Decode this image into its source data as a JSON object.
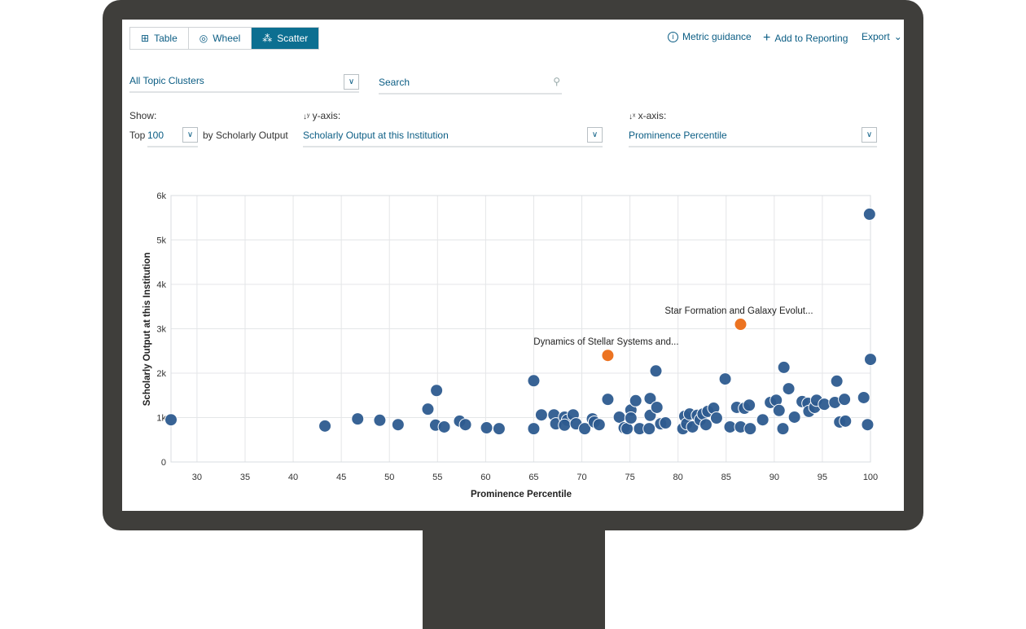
{
  "toolbar": {
    "tabs": [
      {
        "label": "Table",
        "icon": "grid-icon"
      },
      {
        "label": "Wheel",
        "icon": "wheel-icon"
      },
      {
        "label": "Scatter",
        "icon": "scatter-icon",
        "active": true
      }
    ],
    "metric_guidance": "Metric guidance",
    "add_to_reporting": "Add to Reporting",
    "export": "Export"
  },
  "filters": {
    "cluster_select": "All Topic Clusters",
    "search_placeholder": "Search"
  },
  "show": {
    "label": "Show:",
    "top_prefix": "Top",
    "top_value": "100",
    "by_label": "by Scholarly Output"
  },
  "yaxis_select": {
    "label": "y-axis:",
    "value": "Scholarly Output at this Institution"
  },
  "xaxis_select": {
    "label": "x-axis:",
    "value": "Prominence Percentile"
  },
  "colors": {
    "accent": "#0c6f91",
    "point": "#2d5b8f",
    "highlight": "#ec7321"
  },
  "chart_data": {
    "type": "scatter",
    "xlabel": "Prominence Percentile",
    "ylabel": "Scholarly Output at this Institution",
    "xlim": [
      27.3,
      100
    ],
    "ylim": [
      0,
      6000
    ],
    "xticks": [
      "30",
      "35",
      "40",
      "45",
      "50",
      "55",
      "60",
      "65",
      "70",
      "75",
      "80",
      "85",
      "90",
      "95",
      "100"
    ],
    "yticks": [
      "0",
      "1k",
      "2k",
      "3k",
      "4k",
      "5k",
      "6k"
    ],
    "grid": true,
    "points": [
      [
        27.3,
        950
      ],
      [
        43.3,
        810
      ],
      [
        46.7,
        970
      ],
      [
        49.0,
        940
      ],
      [
        50.9,
        840
      ],
      [
        54.0,
        1190
      ],
      [
        54.9,
        1610
      ],
      [
        54.8,
        830
      ],
      [
        55.7,
        790
      ],
      [
        57.3,
        920
      ],
      [
        57.9,
        840
      ],
      [
        60.1,
        770
      ],
      [
        61.4,
        750
      ],
      [
        65.0,
        1830
      ],
      [
        65.0,
        750
      ],
      [
        65.8,
        1060
      ],
      [
        67.1,
        1060
      ],
      [
        67.3,
        860
      ],
      [
        68.2,
        1010
      ],
      [
        68.5,
        940
      ],
      [
        68.2,
        830
      ],
      [
        69.1,
        1060
      ],
      [
        69.4,
        860
      ],
      [
        70.3,
        750
      ],
      [
        71.1,
        970
      ],
      [
        71.3,
        900
      ],
      [
        71.8,
        840
      ],
      [
        72.7,
        1410
      ],
      [
        73.9,
        1010
      ],
      [
        74.4,
        770
      ],
      [
        74.7,
        750
      ],
      [
        75.1,
        1170
      ],
      [
        75.1,
        990
      ],
      [
        75.6,
        1380
      ],
      [
        76.0,
        750
      ],
      [
        77.0,
        750
      ],
      [
        77.1,
        1430
      ],
      [
        77.1,
        1050
      ],
      [
        77.8,
        1230
      ],
      [
        77.7,
        2050
      ],
      [
        78.2,
        860
      ],
      [
        78.7,
        880
      ],
      [
        80.5,
        750
      ],
      [
        80.7,
        1030
      ],
      [
        80.9,
        860
      ],
      [
        81.2,
        1080
      ],
      [
        81.5,
        790
      ],
      [
        82.0,
        1050
      ],
      [
        82.3,
        950
      ],
      [
        82.6,
        1080
      ],
      [
        82.9,
        840
      ],
      [
        83.1,
        1140
      ],
      [
        83.7,
        1210
      ],
      [
        84.0,
        990
      ],
      [
        84.9,
        1870
      ],
      [
        85.4,
        790
      ],
      [
        86.1,
        1230
      ],
      [
        86.5,
        790
      ],
      [
        86.9,
        1210
      ],
      [
        87.4,
        1280
      ],
      [
        87.5,
        750
      ],
      [
        88.8,
        950
      ],
      [
        89.6,
        1340
      ],
      [
        90.2,
        1390
      ],
      [
        90.5,
        1160
      ],
      [
        90.9,
        750
      ],
      [
        91.0,
        2130
      ],
      [
        91.5,
        1650
      ],
      [
        92.1,
        1010
      ],
      [
        92.9,
        1360
      ],
      [
        93.5,
        1320
      ],
      [
        93.6,
        1140
      ],
      [
        94.2,
        1230
      ],
      [
        94.4,
        1390
      ],
      [
        95.2,
        1300
      ],
      [
        96.3,
        1340
      ],
      [
        96.5,
        1820
      ],
      [
        96.8,
        900
      ],
      [
        97.4,
        920
      ],
      [
        97.3,
        1410
      ],
      [
        99.3,
        1450
      ],
      [
        99.7,
        840
      ],
      [
        100,
        2310
      ],
      [
        99.9,
        5580
      ]
    ],
    "highlighted": [
      {
        "x": 72.7,
        "y": 2400,
        "label": "Dynamics of Stellar Systems and..."
      },
      {
        "x": 86.5,
        "y": 3100,
        "label": "Star Formation and Galaxy Evolut..."
      }
    ]
  }
}
